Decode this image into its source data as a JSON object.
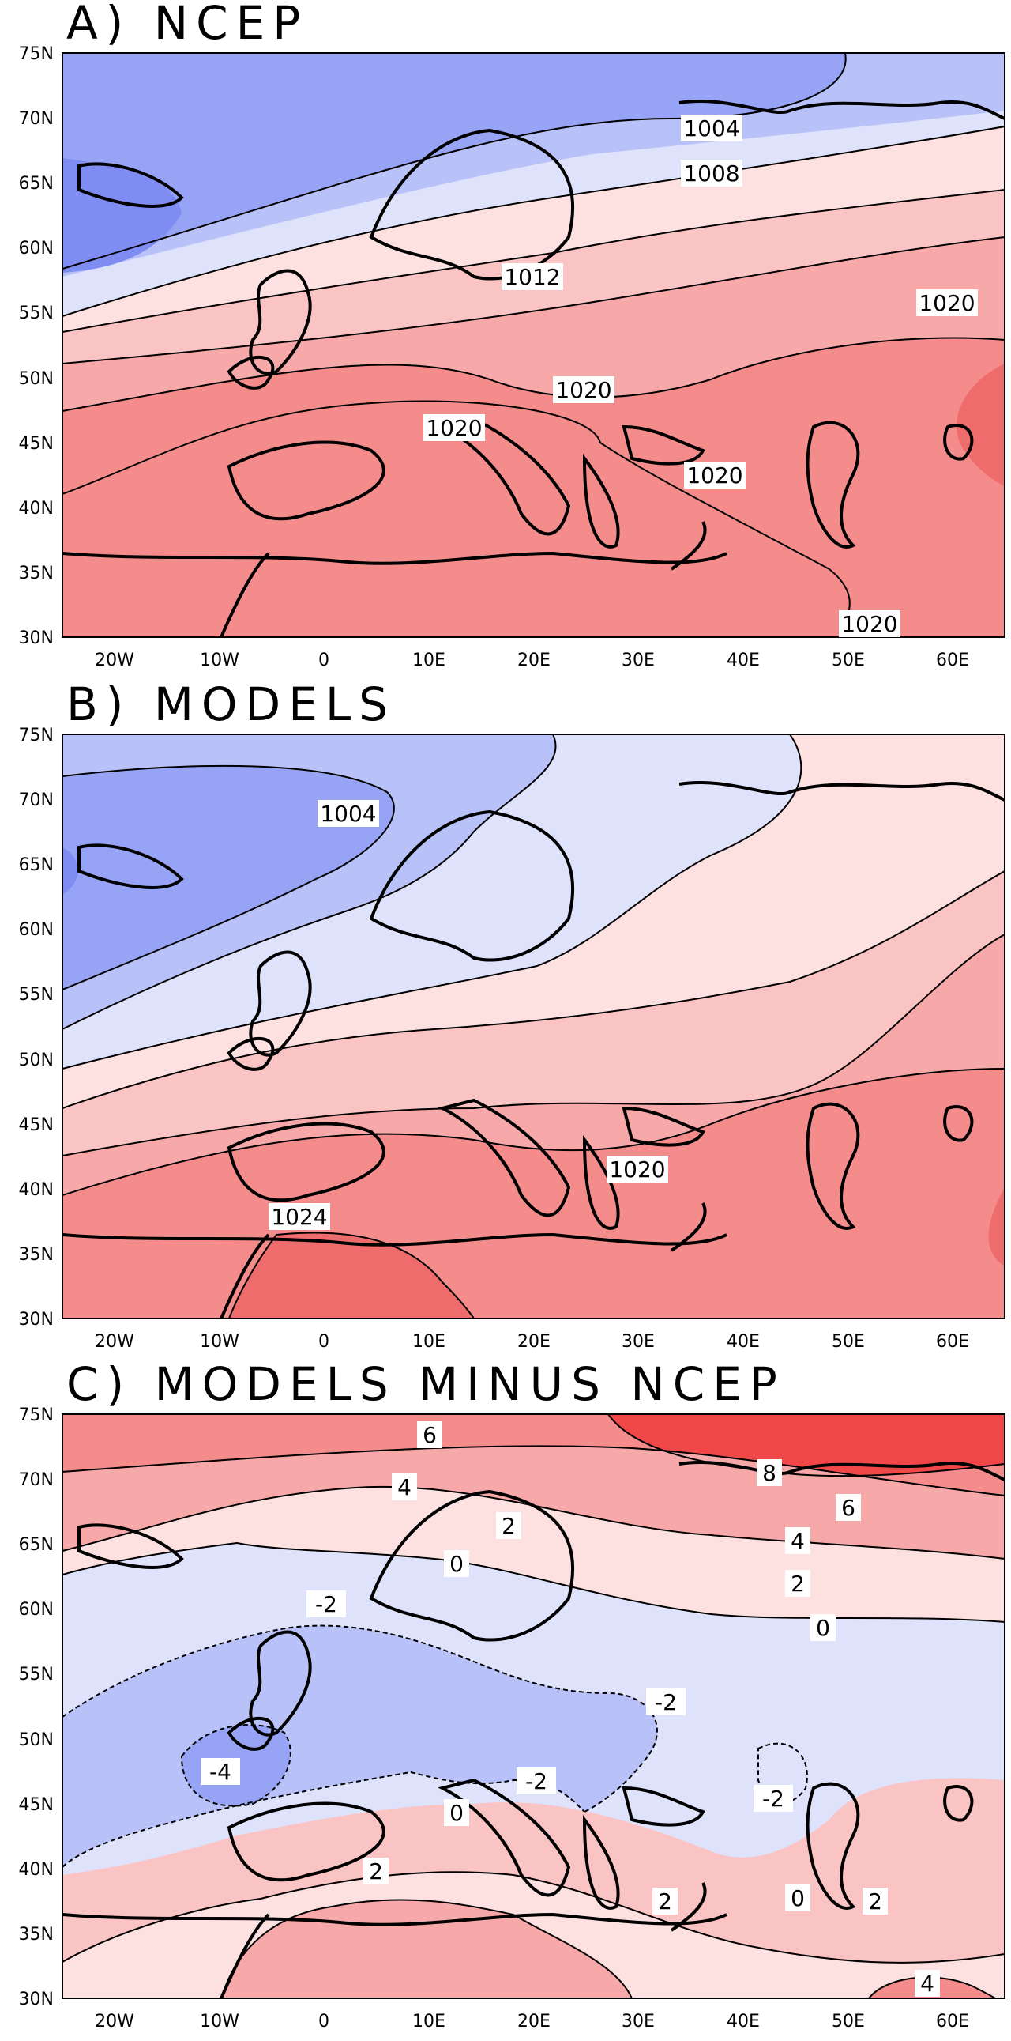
{
  "figure": {
    "colors": {
      "blue_dark": "#7f8cf2",
      "blue_mid": "#97a4f5",
      "blue_light": "#b9c2f8",
      "blue_pale": "#dfe2fb",
      "red_pale": "#fde0e0",
      "red_light": "#fbc4c4",
      "red_mid": "#f7a8a8",
      "red_strong": "#f48c8c",
      "red_dark": "#ef6c6c",
      "red_deep": "#f04848"
    },
    "panels": [
      {
        "id": "a",
        "title": "A) NCEP",
        "xticks": [
          "20W",
          "10W",
          "0",
          "10E",
          "20E",
          "30E",
          "40E",
          "50E",
          "60E"
        ],
        "yticks": [
          "75N",
          "70N",
          "65N",
          "60N",
          "55N",
          "50N",
          "45N",
          "40N",
          "35N",
          "30N"
        ],
        "contour_labels": [
          "1004",
          "1008",
          "1012",
          "1020",
          "1020",
          "1020",
          "1020",
          "1020"
        ]
      },
      {
        "id": "b",
        "title": "B) MODELS",
        "xticks": [
          "20W",
          "10W",
          "0",
          "10E",
          "20E",
          "30E",
          "40E",
          "50E",
          "60E"
        ],
        "yticks": [
          "75N",
          "70N",
          "65N",
          "60N",
          "55N",
          "50N",
          "45N",
          "40N",
          "35N",
          "30N"
        ],
        "contour_labels": [
          "1004",
          "1020",
          "1024"
        ]
      },
      {
        "id": "c",
        "title": "C) MODELS MINUS NCEP",
        "xticks": [
          "20W",
          "10W",
          "0",
          "10E",
          "20E",
          "30E",
          "40E",
          "50E",
          "60E"
        ],
        "yticks": [
          "75N",
          "70N",
          "65N",
          "60N",
          "55N",
          "50N",
          "45N",
          "40N",
          "35N",
          "30N"
        ],
        "contour_labels": [
          "6",
          "4",
          "2",
          "0",
          "-2",
          "-4",
          "8",
          "6",
          "4",
          "2",
          "0",
          "-2",
          "-2",
          "-2",
          "0",
          "2",
          "2",
          "0",
          "2",
          "4"
        ]
      }
    ]
  }
}
